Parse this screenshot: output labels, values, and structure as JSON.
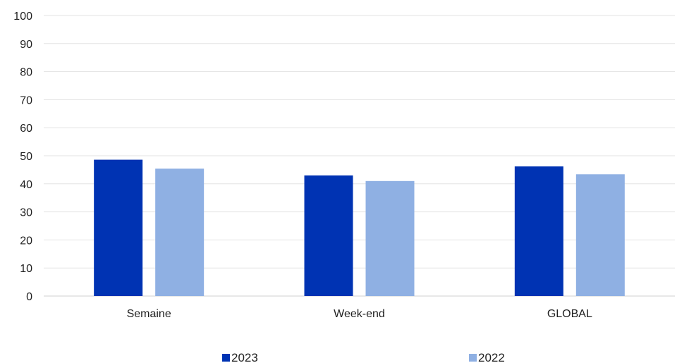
{
  "chart_data": {
    "type": "bar",
    "categories": [
      "Semaine",
      "Week-end",
      "GLOBAL"
    ],
    "series": [
      {
        "name": "2023",
        "values": [
          48.6,
          43.0,
          46.2
        ],
        "color": "#0033b3"
      },
      {
        "name": "2022",
        "values": [
          45.4,
          41.0,
          43.4
        ],
        "color": "#8fb0e3"
      }
    ],
    "title": "",
    "xlabel": "",
    "ylabel": "",
    "ylim": [
      0,
      100
    ],
    "yticks": [
      0,
      10,
      20,
      30,
      40,
      50,
      60,
      70,
      80,
      90,
      100
    ],
    "grid": true,
    "legend_position": "bottom"
  }
}
